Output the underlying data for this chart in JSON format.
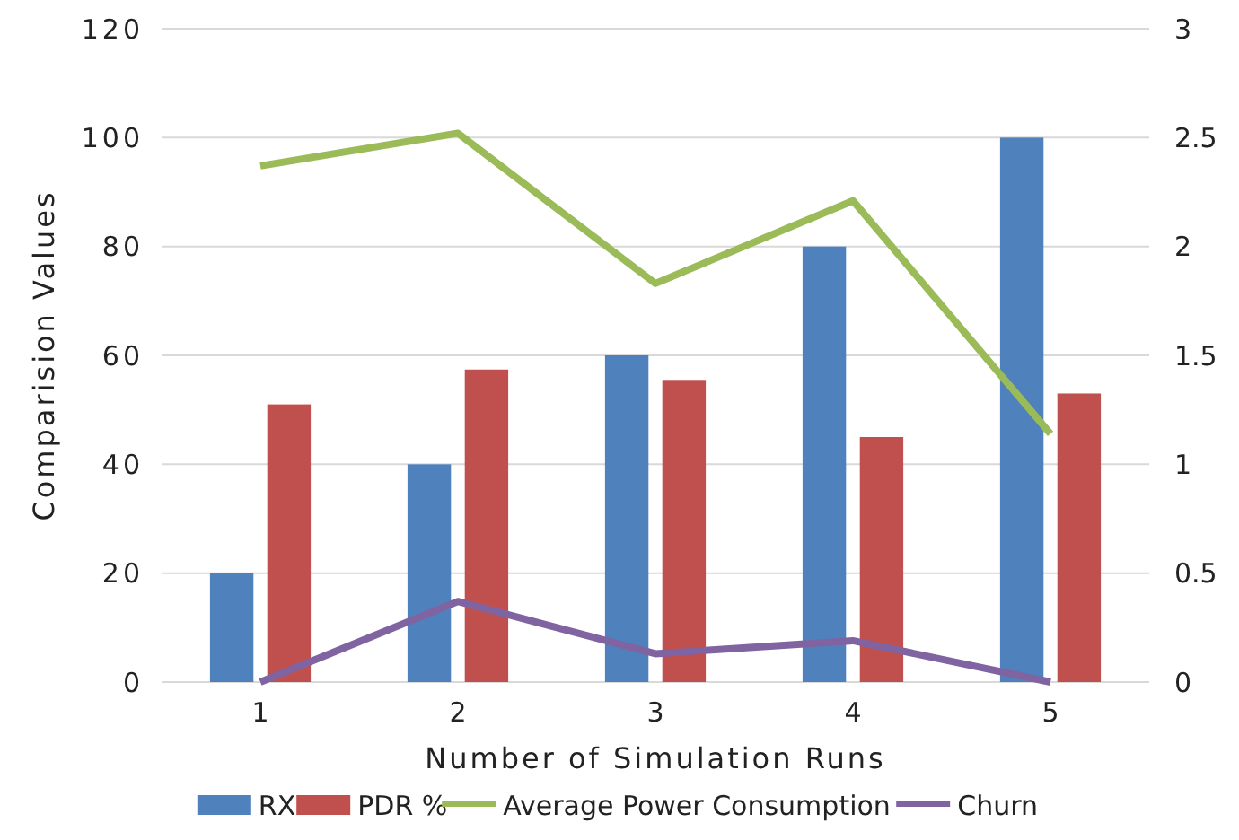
{
  "chart_data": {
    "type": "bar",
    "xlabel": "Number of Simulation Runs",
    "ylabel": "Comparision Values",
    "categories": [
      "1",
      "2",
      "3",
      "4",
      "5"
    ],
    "series": [
      {
        "name": "RX",
        "color": "#4f81bd",
        "values": [
          20,
          40,
          60,
          80,
          100
        ]
      },
      {
        "name": "PDR %",
        "color": "#c0504d",
        "values": [
          51,
          57.4,
          55.5,
          45,
          53
        ]
      },
      {
        "name": "Average Power Consumption",
        "type": "line",
        "axis": "y2",
        "color": "#9bbb59",
        "values": [
          2.37,
          2.52,
          1.83,
          2.21,
          1.14
        ]
      },
      {
        "name": "Churn",
        "type": "line",
        "axis": "y2",
        "color": "#8064a2",
        "values": [
          0,
          0.37,
          0.13,
          0.19,
          0
        ]
      }
    ],
    "ylim": [
      0,
      120
    ],
    "yticks": [
      0,
      20,
      40,
      60,
      80,
      100,
      120
    ],
    "y2lim": [
      0,
      3
    ],
    "y2ticks": [
      0,
      0.5,
      1,
      1.5,
      2,
      2.5,
      3
    ],
    "grid": "y",
    "legend": "bottom",
    "marker": "none",
    "line_style": "solid"
  }
}
